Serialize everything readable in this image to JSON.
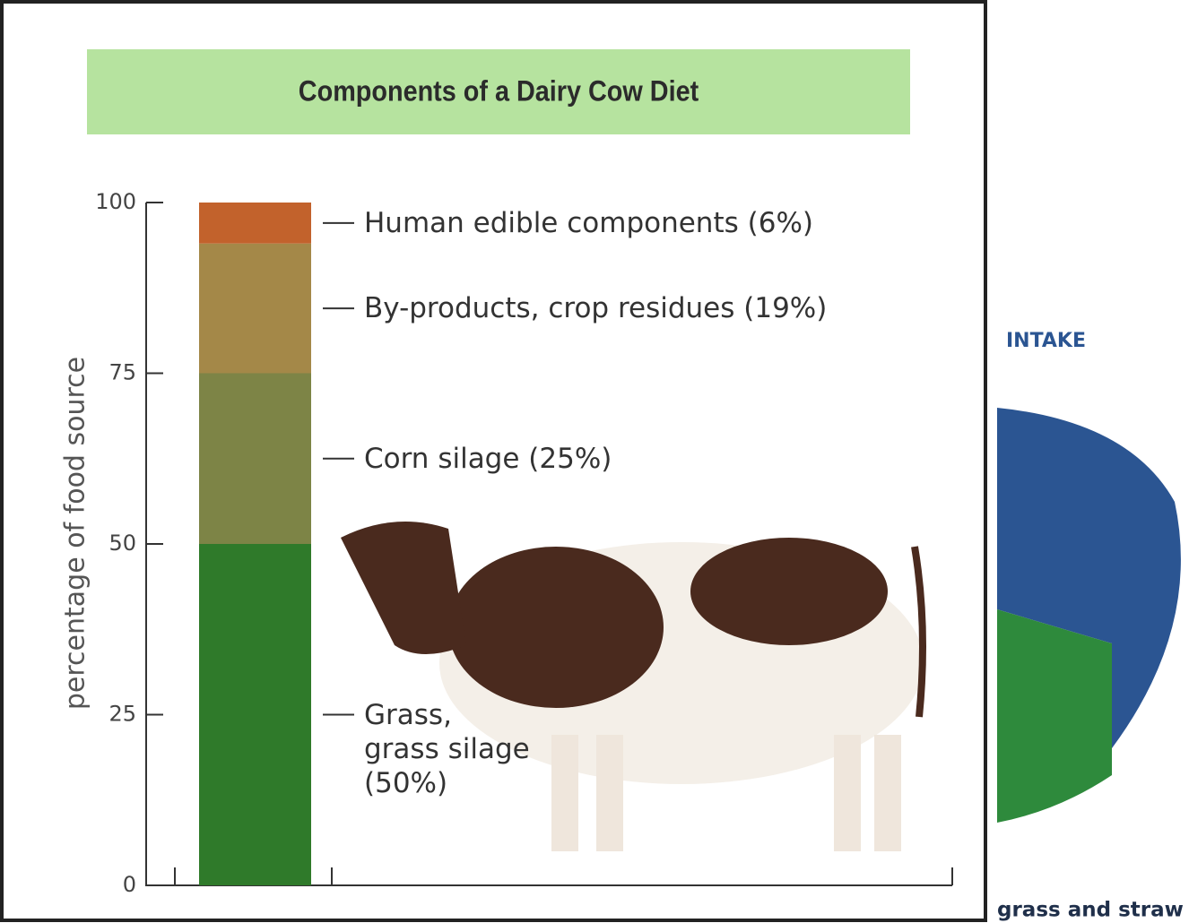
{
  "chart_data": {
    "type": "bar",
    "stacked": true,
    "title": "Components of a Dairy Cow Diet",
    "ylabel": "percentage of food source",
    "categories": [
      null
    ],
    "series": [
      {
        "name": "Grass,\ngrass silage",
        "color": "#2f7a2a",
        "values": [
          50
        ],
        "value_labels": [
          "(50%)"
        ]
      },
      {
        "name": "Corn silage",
        "color": "#7d8446",
        "values": [
          25
        ],
        "value_labels": [
          "(25%)"
        ]
      },
      {
        "name": "By-products, crop residues",
        "color": "#a48848",
        "values": [
          19
        ],
        "value_labels": [
          "(19%)"
        ]
      },
      {
        "name": "Human edible components",
        "color": "#c2622c",
        "values": [
          6
        ],
        "value_labels": [
          "(6%)"
        ]
      }
    ],
    "ylim": [
      0,
      100
    ],
    "yticks": [
      0,
      25,
      50,
      75,
      100
    ]
  },
  "side_panel": {
    "heading": "INTAKE",
    "caption": "grass and straw"
  }
}
